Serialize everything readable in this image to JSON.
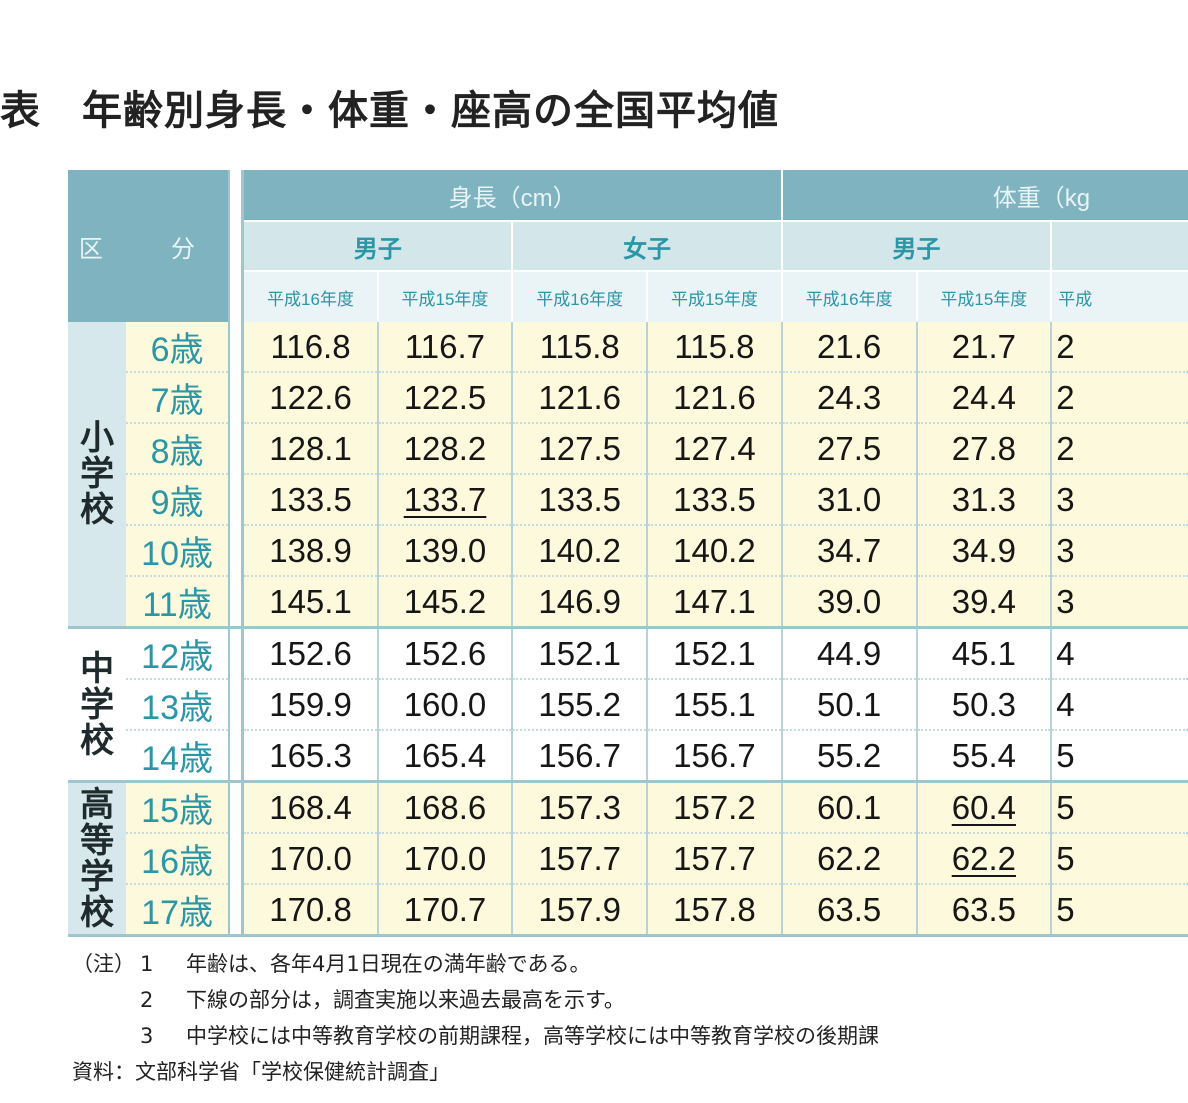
{
  "title": "表　年齢別身長・体重・座高の全国平均値",
  "header": {
    "kubun": "区　分",
    "height_group": "身長（cm）",
    "weight_group": "体重（kg",
    "male": "男子",
    "female": "女子",
    "y16": "平成16年度",
    "y15": "平成15年度",
    "y_cut": "平成"
  },
  "schools": {
    "elementary": "小学校",
    "junior": "中学校",
    "high": "高等学校"
  },
  "rows": [
    {
      "age": "6歳",
      "m16": "116.8",
      "m15": "116.7",
      "f16": "115.8",
      "f15": "115.8",
      "wm16": "21.6",
      "wm15": "21.7",
      "cut": "2"
    },
    {
      "age": "7歳",
      "m16": "122.6",
      "m15": "122.5",
      "f16": "121.6",
      "f15": "121.6",
      "wm16": "24.3",
      "wm15": "24.4",
      "cut": "2"
    },
    {
      "age": "8歳",
      "m16": "128.1",
      "m15": "128.2",
      "f16": "127.5",
      "f15": "127.4",
      "wm16": "27.5",
      "wm15": "27.8",
      "cut": "2"
    },
    {
      "age": "9歳",
      "m16": "133.5",
      "m15": "133.7",
      "f16": "133.5",
      "f15": "133.5",
      "wm16": "31.0",
      "wm15": "31.3",
      "cut": "3"
    },
    {
      "age": "10歳",
      "m16": "138.9",
      "m15": "139.0",
      "f16": "140.2",
      "f15": "140.2",
      "wm16": "34.7",
      "wm15": "34.9",
      "cut": "3"
    },
    {
      "age": "11歳",
      "m16": "145.1",
      "m15": "145.2",
      "f16": "146.9",
      "f15": "147.1",
      "wm16": "39.0",
      "wm15": "39.4",
      "cut": "3"
    },
    {
      "age": "12歳",
      "m16": "152.6",
      "m15": "152.6",
      "f16": "152.1",
      "f15": "152.1",
      "wm16": "44.9",
      "wm15": "45.1",
      "cut": "4"
    },
    {
      "age": "13歳",
      "m16": "159.9",
      "m15": "160.0",
      "f16": "155.2",
      "f15": "155.1",
      "wm16": "50.1",
      "wm15": "50.3",
      "cut": "4"
    },
    {
      "age": "14歳",
      "m16": "165.3",
      "m15": "165.4",
      "f16": "156.7",
      "f15": "156.7",
      "wm16": "55.2",
      "wm15": "55.4",
      "cut": "5"
    },
    {
      "age": "15歳",
      "m16": "168.4",
      "m15": "168.6",
      "f16": "157.3",
      "f15": "157.2",
      "wm16": "60.1",
      "wm15": "60.4",
      "cut": "5"
    },
    {
      "age": "16歳",
      "m16": "170.0",
      "m15": "170.0",
      "f16": "157.7",
      "f15": "157.7",
      "wm16": "62.2",
      "wm15": "62.2",
      "cut": "5"
    },
    {
      "age": "17歳",
      "m16": "170.8",
      "m15": "170.7",
      "f16": "157.9",
      "f15": "157.8",
      "wm16": "63.5",
      "wm15": "63.5",
      "cut": "5"
    }
  ],
  "notes": {
    "prefix": "（注）",
    "items": [
      {
        "num": "1",
        "text": "年齢は、各年4月1日現在の満年齢である。"
      },
      {
        "num": "2",
        "text": "下線の部分は，調査実施以来過去最高を示す。"
      },
      {
        "num": "3",
        "text": "中学校には中等教育学校の前期課程，高等学校には中等教育学校の後期課"
      }
    ],
    "source": "資料：文部科学省「学校保健統計調査」"
  },
  "colors": {
    "header_dark": "#7fb3c0",
    "header_mid": "#d3e6ea",
    "accent_text": "#2a96a6",
    "row_highlight": "#fdf9dc"
  }
}
